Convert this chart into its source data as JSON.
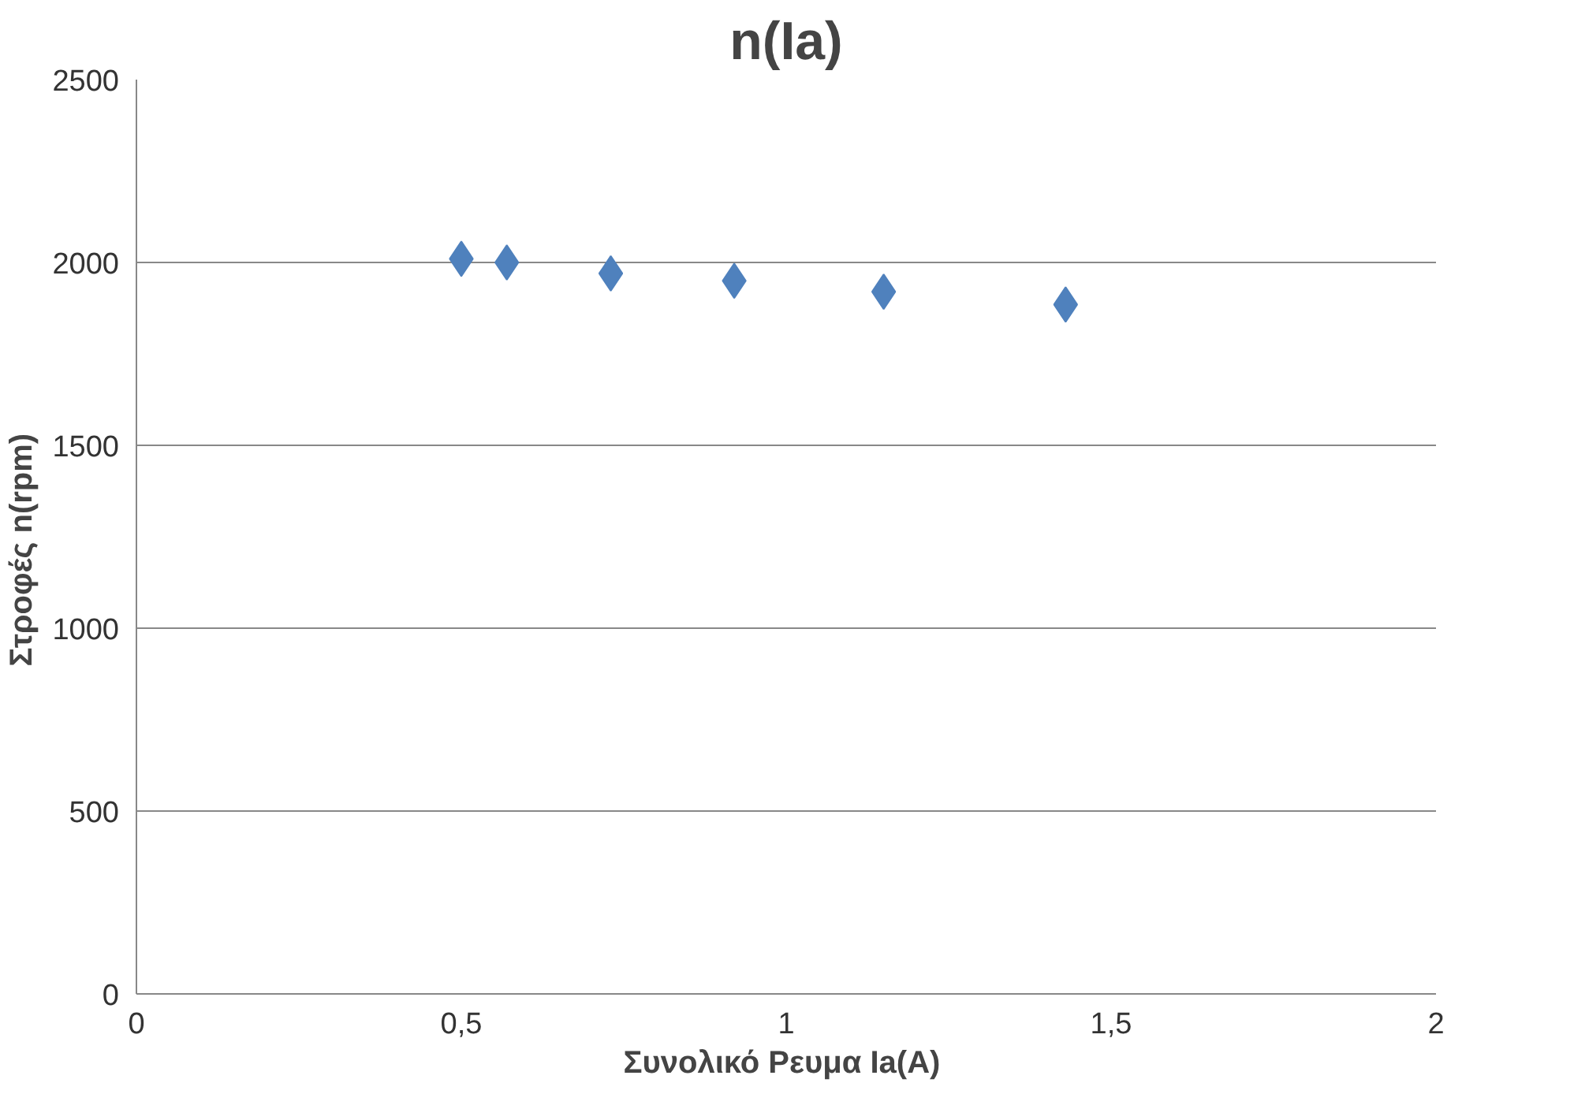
{
  "chart_data": {
    "type": "scatter",
    "title": "n(Ia)",
    "xlabel": "Συνολικό Ρευμα  Ia(A)",
    "ylabel": "Στροφές    n(rpm)",
    "x": [
      0.5,
      0.57,
      0.73,
      0.92,
      1.15,
      1.43
    ],
    "series": [
      {
        "color": "#4f81bd",
        "values": [
          2010,
          2000,
          1970,
          1950,
          1920,
          1885
        ]
      }
    ],
    "xlim": [
      0,
      2
    ],
    "xticks": [
      0,
      {
        "value": 0.5,
        "label": "0,5"
      },
      1,
      {
        "value": 1.5,
        "label": "1,5"
      },
      2
    ],
    "ylim": [
      0,
      2500
    ],
    "yticks": [
      0,
      500,
      1000,
      1500,
      2000,
      2500
    ],
    "grid": "y",
    "marker": "diamond"
  }
}
